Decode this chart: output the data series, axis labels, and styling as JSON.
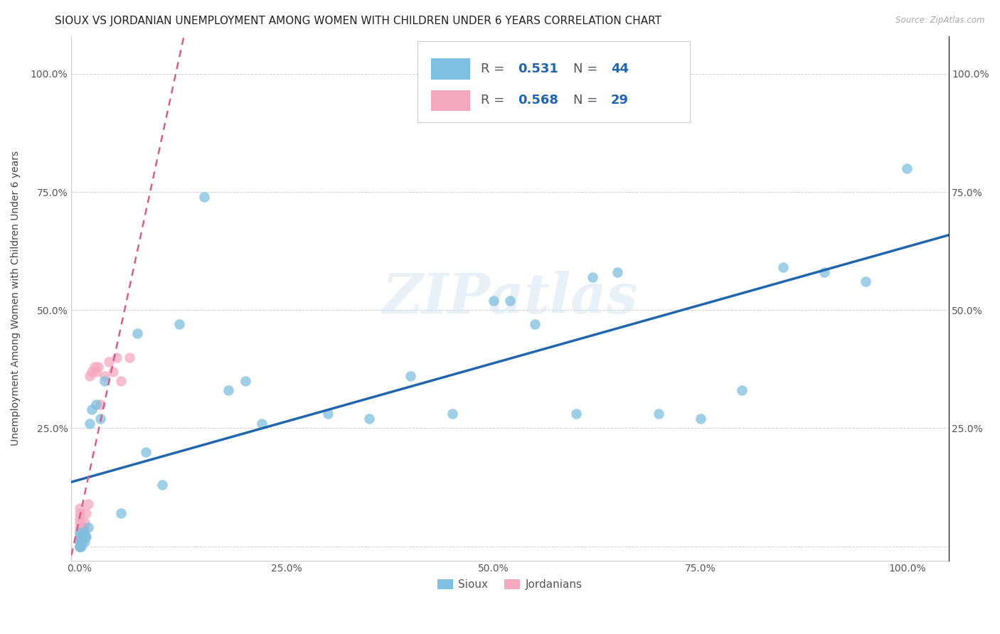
{
  "title": "SIOUX VS JORDANIAN UNEMPLOYMENT AMONG WOMEN WITH CHILDREN UNDER 6 YEARS CORRELATION CHART",
  "source": "Source: ZipAtlas.com",
  "ylabel": "Unemployment Among Women with Children Under 6 years",
  "sioux_R": 0.531,
  "sioux_N": 44,
  "jordan_R": 0.568,
  "jordan_N": 29,
  "sioux_color": "#7fbfdf",
  "jordan_color": "#f4a8c0",
  "sioux_line_color": "#2166ac",
  "jordan_line_color": "#d4608a",
  "background_color": "#ffffff",
  "watermark": "ZIPatlas",
  "sioux_x": [
    0.0,
    0.0,
    0.0,
    0.0,
    0.0,
    0.002,
    0.003,
    0.004,
    0.005,
    0.006,
    0.007,
    0.008,
    0.01,
    0.012,
    0.015,
    0.02,
    0.025,
    0.03,
    0.05,
    0.07,
    0.08,
    0.1,
    0.12,
    0.15,
    0.18,
    0.2,
    0.22,
    0.3,
    0.35,
    0.4,
    0.45,
    0.5,
    0.52,
    0.55,
    0.6,
    0.62,
    0.65,
    0.7,
    0.75,
    0.8,
    0.85,
    0.9,
    0.95,
    1.0
  ],
  "sioux_y": [
    0.0,
    0.0,
    0.01,
    0.02,
    0.03,
    0.0,
    0.01,
    0.02,
    0.03,
    0.01,
    0.02,
    0.02,
    0.04,
    0.26,
    0.29,
    0.3,
    0.27,
    0.35,
    0.07,
    0.45,
    0.2,
    0.13,
    0.47,
    0.74,
    0.33,
    0.35,
    0.26,
    0.28,
    0.27,
    0.36,
    0.28,
    0.52,
    0.52,
    0.47,
    0.28,
    0.57,
    0.58,
    0.28,
    0.27,
    0.33,
    0.59,
    0.58,
    0.56,
    0.8
  ],
  "jordan_x": [
    0.0,
    0.0,
    0.0,
    0.0,
    0.0,
    0.0,
    0.0,
    0.0,
    0.0,
    0.0,
    0.002,
    0.003,
    0.004,
    0.005,
    0.006,
    0.008,
    0.01,
    0.012,
    0.015,
    0.018,
    0.02,
    0.022,
    0.025,
    0.03,
    0.035,
    0.04,
    0.045,
    0.05,
    0.06
  ],
  "jordan_y": [
    0.0,
    0.0,
    0.01,
    0.02,
    0.03,
    0.04,
    0.05,
    0.06,
    0.07,
    0.08,
    0.01,
    0.02,
    0.03,
    0.04,
    0.05,
    0.07,
    0.09,
    0.36,
    0.37,
    0.38,
    0.37,
    0.38,
    0.3,
    0.36,
    0.39,
    0.37,
    0.4,
    0.35,
    0.4
  ],
  "xlim": [
    -0.01,
    1.05
  ],
  "ylim": [
    -0.03,
    1.08
  ],
  "xticks": [
    0.0,
    0.25,
    0.5,
    0.75,
    1.0
  ],
  "yticks": [
    0.0,
    0.25,
    0.5,
    0.75,
    1.0
  ],
  "xticklabels": [
    "0.0%",
    "25.0%",
    "50.0%",
    "75.0%",
    "100.0%"
  ],
  "yticklabels": [
    "",
    "25.0%",
    "50.0%",
    "75.0%",
    "100.0%"
  ],
  "right_yticklabels": [
    "",
    "25.0%",
    "50.0%",
    "75.0%",
    "100.0%"
  ],
  "title_fontsize": 11,
  "label_fontsize": 10,
  "tick_fontsize": 10
}
